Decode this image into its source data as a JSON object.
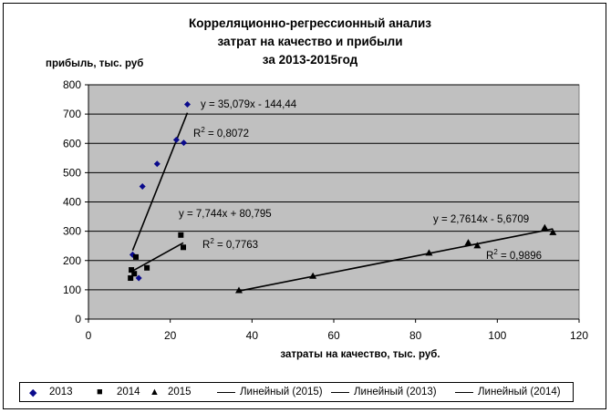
{
  "title": {
    "line1": "Корреляционно-регрессионный анализ",
    "line2": "затрат на качество и прибыли",
    "line3": "за 2013-2015год"
  },
  "colors": {
    "plot_bg": "#c0c0c0",
    "series_2013": "#0a0a8c",
    "series_2014": "#000000",
    "series_2015": "#000000",
    "trend": "#000000"
  },
  "chart_data": {
    "type": "scatter",
    "title": "Корреляционно-регрессионный анализ затрат на качество и прибыли за 2013-2015год",
    "xlabel": "затраты на качество, тыс. руб.",
    "ylabel": "прибыль, тыс. руб",
    "xlim": [
      0,
      120
    ],
    "ylim": [
      0,
      800
    ],
    "xticks": [
      0,
      20,
      40,
      60,
      80,
      100,
      120
    ],
    "yticks": [
      0,
      100,
      200,
      300,
      400,
      500,
      600,
      700,
      800
    ],
    "grid": "horizontal",
    "legend_position": "bottom",
    "series": [
      {
        "name": "2013",
        "marker": "diamond",
        "color": "#0a0a8c",
        "points": [
          [
            10.8,
            220
          ],
          [
            12.3,
            140
          ],
          [
            13.2,
            453
          ],
          [
            16.8,
            530
          ],
          [
            21.5,
            612
          ],
          [
            23.3,
            602
          ],
          [
            24.2,
            733
          ]
        ]
      },
      {
        "name": "2014",
        "marker": "square",
        "color": "#000000",
        "points": [
          [
            10.3,
            140
          ],
          [
            10.5,
            168
          ],
          [
            11.2,
            155
          ],
          [
            11.6,
            212
          ],
          [
            14.3,
            175
          ],
          [
            22.6,
            287
          ],
          [
            23.2,
            245
          ]
        ]
      },
      {
        "name": "2015",
        "marker": "triangle",
        "color": "#000000",
        "points": [
          [
            36.8,
            98
          ],
          [
            54.9,
            147
          ],
          [
            83.3,
            226
          ],
          [
            92.9,
            261
          ],
          [
            95.1,
            251
          ],
          [
            111.6,
            312
          ],
          [
            113.6,
            296
          ]
        ]
      }
    ],
    "trendlines": [
      {
        "name": "Линейный (2015)",
        "x_range": [
          36.8,
          113.6
        ],
        "slope": 2.7614,
        "intercept": -5.6709,
        "equation": "y = 2,7614x - 5,6709",
        "r2_label": "R",
        "r2_sup": "2",
        "r2_value": " = 0,9896"
      },
      {
        "name": "Линейный (2013)",
        "x_range": [
          10.8,
          24.2
        ],
        "slope": 35.079,
        "intercept": -144.44,
        "equation": "y = 35,079x - 144,44",
        "r2_label": "R",
        "r2_sup": "2",
        "r2_value": " = 0,8072"
      },
      {
        "name": "Линейный (2014)",
        "x_range": [
          10.3,
          23.2
        ],
        "slope": 7.744,
        "intercept": 80.795,
        "equation": "y = 7,744x + 80,795",
        "r2_label": "R",
        "r2_sup": "2",
        "r2_value": " = 0,7763"
      }
    ]
  },
  "legend": {
    "items": [
      {
        "label": "2013",
        "kind": "diamond"
      },
      {
        "label": "2014",
        "kind": "square"
      },
      {
        "label": "2015",
        "kind": "triangle"
      },
      {
        "label": "Линейный (2015)",
        "kind": "line"
      },
      {
        "label": "Линейный (2013)",
        "kind": "line"
      },
      {
        "label": "Линейный (2014)",
        "kind": "line"
      }
    ]
  }
}
